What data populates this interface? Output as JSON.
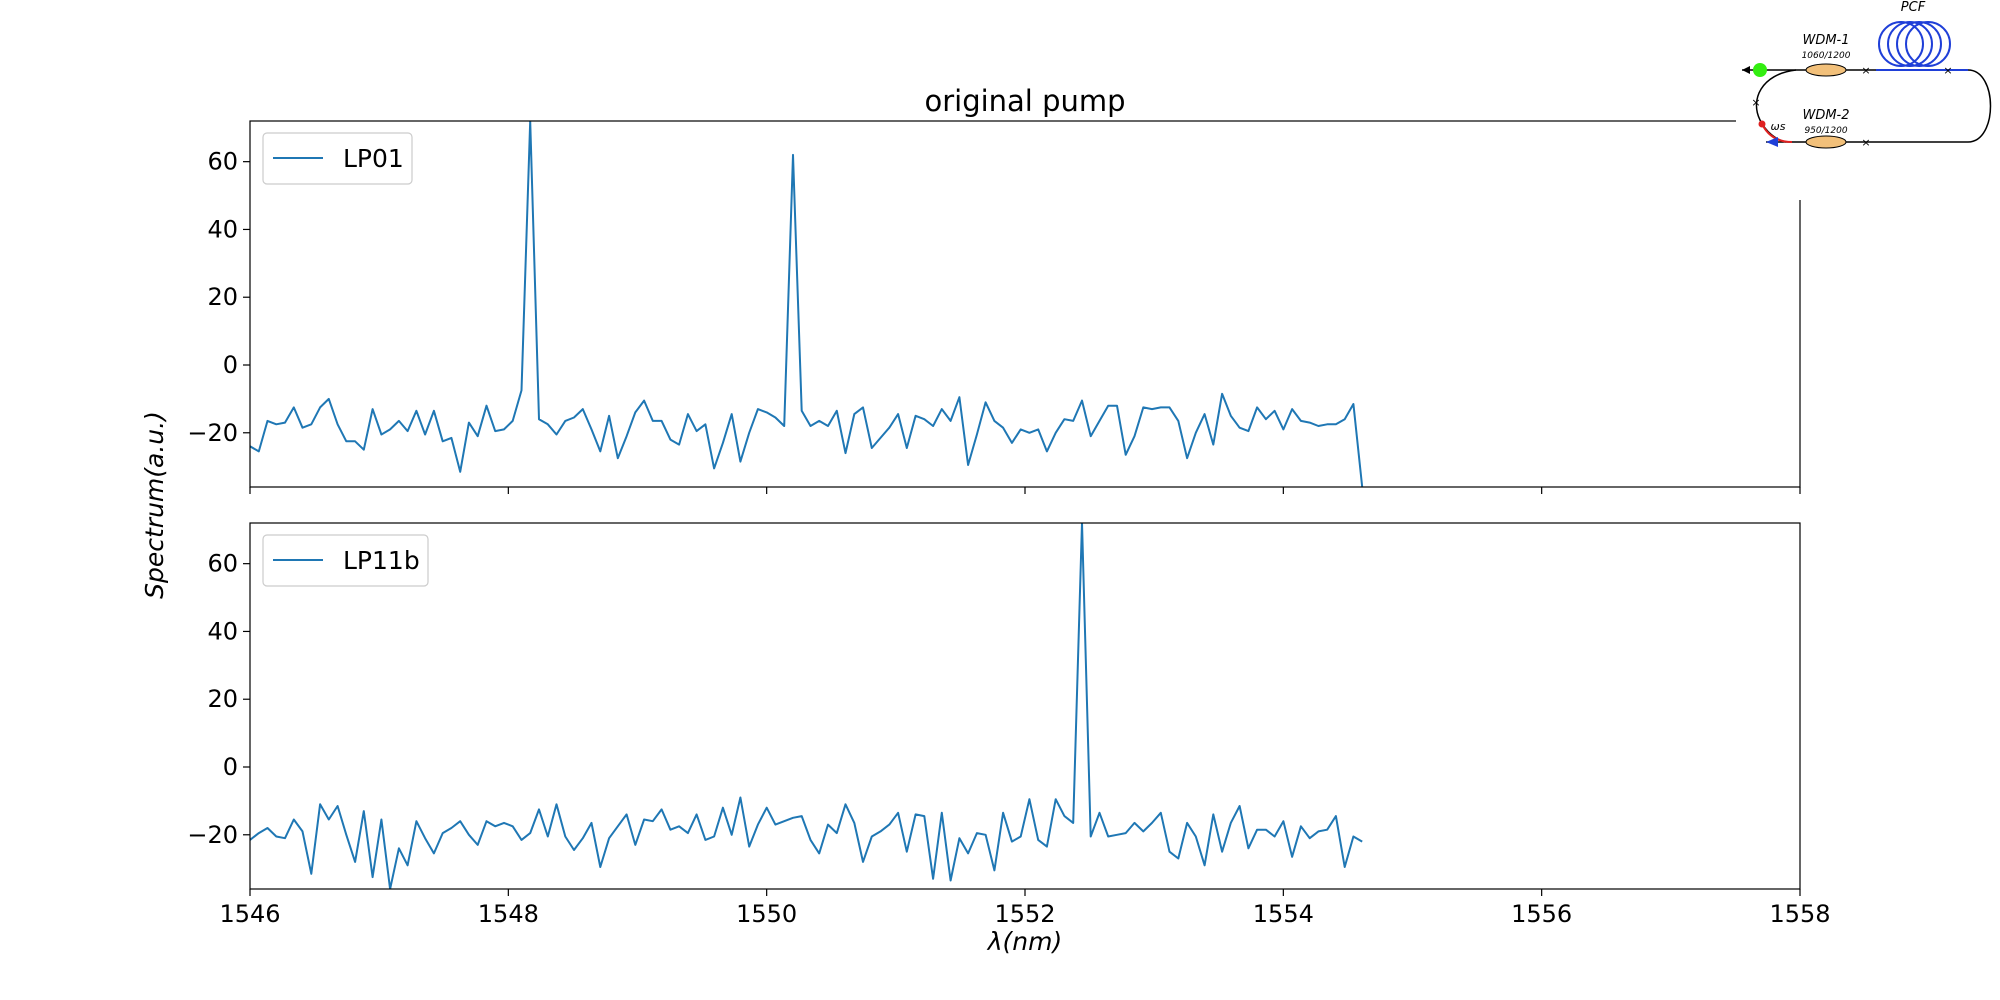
{
  "chart_data": {
    "type": "line",
    "title": "original pump",
    "xlabel": "λ(nm)",
    "ylabel": "Spectrum(a.u.)",
    "xlim": [
      1546,
      1558
    ],
    "ylim": [
      -36,
      72
    ],
    "xticks": [
      "1546",
      "1548",
      "1550",
      "1552",
      "1554",
      "1556",
      "1558"
    ],
    "yticks": [
      "−20",
      "0",
      "20",
      "40",
      "60"
    ],
    "line_color": "#1f77b4",
    "grid": false,
    "legend_position": "top-left",
    "panels": [
      {
        "legend": "LP01",
        "x_start": 1546.0,
        "x_step": 0.0678,
        "y": [
          -24,
          -25.5,
          -16.5,
          -17.5,
          -17,
          -12.5,
          -18.5,
          -17.5,
          -12.5,
          -10,
          -17.5,
          -22.5,
          -22.5,
          -25,
          -13,
          -20.5,
          -19,
          -16.5,
          -19.5,
          -13.5,
          -20.5,
          -13.5,
          -22.5,
          -21.5,
          -31.5,
          -17,
          -21,
          -12,
          -19.5,
          -19,
          -16.5,
          -7.5,
          72,
          -16,
          -17.5,
          -20.5,
          -16.5,
          -15.5,
          -13,
          -19,
          -25.5,
          -15,
          -27.5,
          -21,
          -14,
          -10.5,
          -16.5,
          -16.5,
          -22,
          -23.5,
          -14.5,
          -19.5,
          -17.5,
          -30.5,
          -23,
          -14.5,
          -28.5,
          -20,
          -13,
          -14,
          -15.5,
          -18,
          62,
          -13.5,
          -18,
          -16.5,
          -18,
          -13.5,
          -26,
          -14.5,
          -12.5,
          -24.5,
          -21.5,
          -18.5,
          -14.5,
          -24.5,
          -15,
          -16,
          -18,
          -13,
          -16.5,
          -9.5,
          -29.5,
          -20.5,
          -11,
          -16.5,
          -18.5,
          -23,
          -19,
          -20,
          -19,
          -25.5,
          -20,
          -16,
          -16.5,
          -10.5,
          -21,
          -16.5,
          -12,
          -12,
          -26.5,
          -21,
          -12.5,
          -13,
          -12.5,
          -12.5,
          -16.5,
          -27.5,
          -20,
          -14.5,
          -23.5,
          -8.5,
          -15,
          -18.5,
          -19.5,
          -12.5,
          -16,
          -13.5,
          -19,
          -13,
          -16.5,
          -17,
          -18,
          -17.5,
          -17.5,
          -16,
          -11.5,
          -36
        ]
      },
      {
        "legend": "LP11b",
        "x_start": 1546.0,
        "x_step": 0.0678,
        "y": [
          -21.5,
          -19.5,
          -18,
          -20.5,
          -21,
          -15.5,
          -19,
          -31.5,
          -11,
          -15.5,
          -11.5,
          -20,
          -28,
          -13,
          -32.5,
          -15.5,
          -36,
          -24,
          -29,
          -16,
          -21,
          -25.5,
          -19.5,
          -18,
          -16,
          -20,
          -23,
          -16,
          -17.5,
          -16.5,
          -17.5,
          -21.5,
          -19.5,
          -12.5,
          -20.5,
          -11,
          -20.5,
          -24.5,
          -21,
          -16.5,
          -29.5,
          -21,
          -17.5,
          -14,
          -23,
          -15.5,
          -16,
          -12.5,
          -18.5,
          -17.5,
          -19.5,
          -14,
          -21.5,
          -20.5,
          -12,
          -20,
          -9,
          -23.5,
          -17,
          -12,
          -17,
          -16,
          -15,
          -14.5,
          -21.5,
          -25.5,
          -17,
          -19.5,
          -11,
          -16.5,
          -28,
          -20.5,
          -19,
          -17,
          -13.5,
          -25,
          -14,
          -14.5,
          -33,
          -13.5,
          -33.5,
          -21,
          -25.5,
          -19.5,
          -20,
          -30.5,
          -13.5,
          -22,
          -20.5,
          -9.5,
          -21.5,
          -23.5,
          -9.5,
          -14.5,
          -16.5,
          72,
          -20.5,
          -13.5,
          -20.5,
          -20,
          -19.5,
          -16.5,
          -19,
          -16.5,
          -13.5,
          -25,
          -27,
          -16.5,
          -20.5,
          -29,
          -14,
          -25,
          -16.5,
          -11.5,
          -24,
          -18.5,
          -18.5,
          -20.5,
          -16,
          -26.5,
          -17.5,
          -21,
          -19,
          -18.5,
          -14.5,
          -29.5,
          -20.5,
          -22
        ]
      }
    ]
  },
  "inset": {
    "labels": {
      "pcf": "PCF",
      "wdm1": "WDM-1",
      "wdm1_spec": "1060/1200",
      "wdm2": "WDM-2",
      "wdm2_spec": "950/1200",
      "omega": "ωs"
    },
    "colors": {
      "green_dot": "#33ee11",
      "coil": "#1f3fd8",
      "coupler": "#f2c07a",
      "red_dot": "#e02020",
      "blue_arrow": "#1f3fd8"
    }
  }
}
